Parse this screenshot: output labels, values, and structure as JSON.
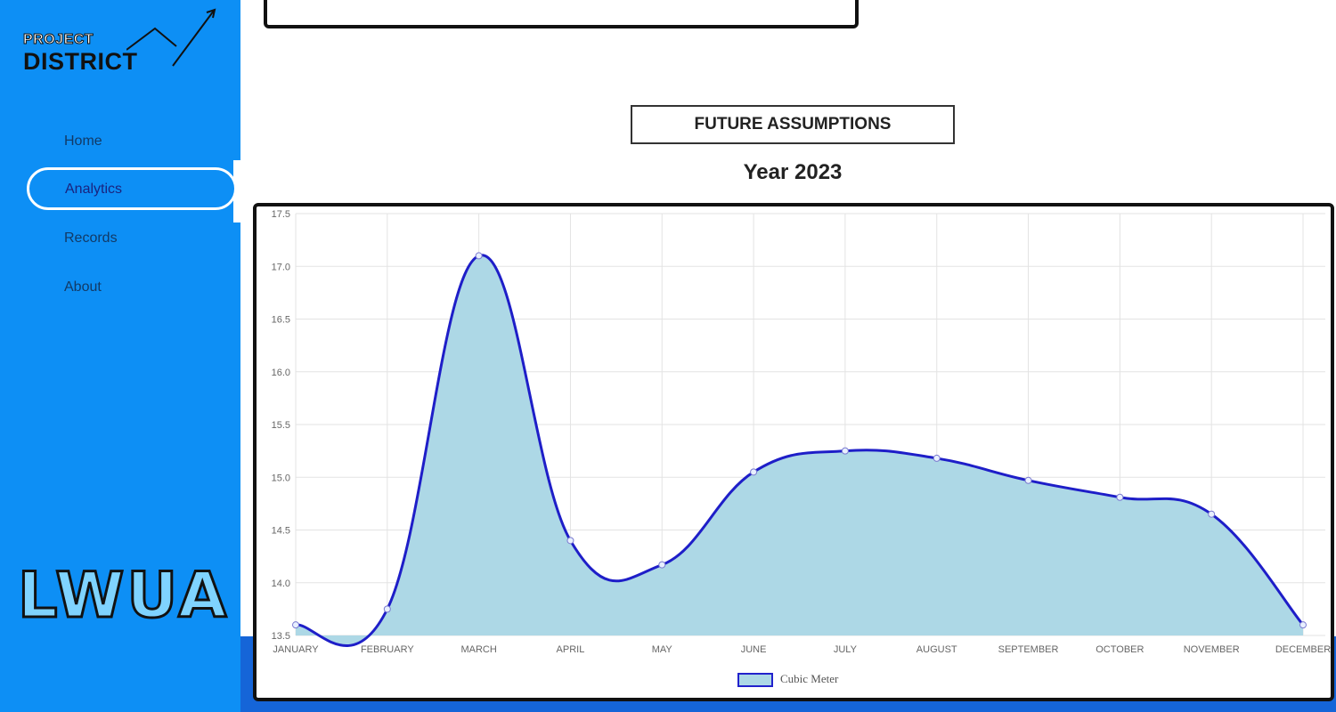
{
  "logo": {
    "line1": "PROJECT",
    "line2": "DISTRICT"
  },
  "nav": {
    "home": "Home",
    "analytics": "Analytics",
    "records": "Records",
    "about": "About"
  },
  "brand": "LWUA",
  "section": {
    "heading": "FUTURE ASSUMPTIONS",
    "year": "Year 2023"
  },
  "colors": {
    "sidebar": "#0d8ff5",
    "fill": "#add8e6",
    "line": "#1e1ec8",
    "footer_strip": "#1565d8"
  },
  "chart_data": {
    "type": "area",
    "categories": [
      "JANUARY",
      "FEBRUARY",
      "MARCH",
      "APRIL",
      "MAY",
      "JUNE",
      "JULY",
      "AUGUST",
      "SEPTEMBER",
      "OCTOBER",
      "NOVEMBER",
      "DECEMBER"
    ],
    "series": [
      {
        "name": "Cubic Meter",
        "values": [
          13.6,
          13.75,
          17.1,
          14.4,
          14.17,
          15.05,
          15.25,
          15.18,
          14.97,
          14.81,
          14.65,
          13.6
        ]
      }
    ],
    "ylim": [
      13.5,
      17.5
    ],
    "yticks": [
      13.5,
      14.0,
      14.5,
      15.0,
      15.5,
      16.0,
      16.5,
      17.0,
      17.5
    ],
    "grid": true,
    "legend": "bottom"
  }
}
